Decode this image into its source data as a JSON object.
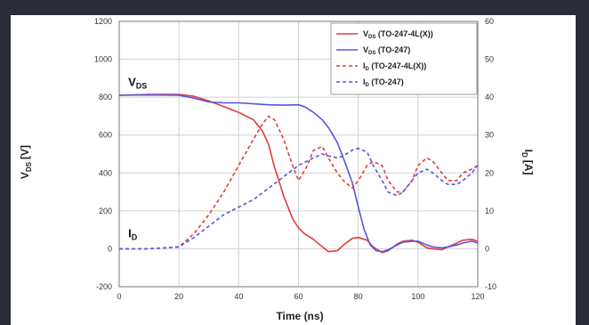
{
  "colors": {
    "background": "#2a2d35",
    "panel": "#ffffff",
    "red": "#e23b3b",
    "blue": "#5656e0",
    "grid": "#d0d0d0"
  },
  "chart_data": {
    "type": "line",
    "title": "",
    "xlabel": "Time (ns)",
    "ylabel": "V_DS [V]",
    "ylabel_main": "V",
    "ylabel_sub": "DS",
    "ylabel_unit": "[V]",
    "y2label": "I_D [A]",
    "y2label_main": "I",
    "y2label_sub": "D",
    "y2label_unit": "[A]",
    "xlim": [
      0,
      120
    ],
    "ylim": [
      -200,
      1200
    ],
    "y2lim": [
      -10,
      60
    ],
    "xticks": [
      "0",
      "20",
      "40",
      "60",
      "80",
      "100",
      "120"
    ],
    "yticks": [
      "-200",
      "0",
      "200",
      "400",
      "600",
      "800",
      "1000",
      "1200"
    ],
    "y2ticks": [
      "-10",
      "0",
      "10",
      "20",
      "30",
      "40",
      "50",
      "60"
    ],
    "grid": true,
    "legend_position": "top-right",
    "annotations": [
      {
        "main": "V",
        "sub": "DS",
        "x": 3,
        "y": 860
      },
      {
        "main": "I",
        "sub": "D",
        "x": 3,
        "y": 60
      }
    ],
    "series": [
      {
        "name": "V_DS (TO-247-4L(X))",
        "name_main": "V",
        "name_sub": "DS",
        "name_rest": " (TO-247-4L(X))",
        "axis": "left",
        "color": "#e23b3b",
        "dash": false,
        "x": [
          0,
          10,
          20,
          25,
          30,
          35,
          40,
          45,
          48,
          50,
          52,
          55,
          58,
          60,
          62,
          65,
          68,
          70,
          73,
          75,
          78,
          80,
          83,
          85,
          88,
          90,
          93,
          95,
          98,
          100,
          103,
          105,
          108,
          110,
          113,
          115,
          118,
          120
        ],
        "y": [
          810,
          815,
          815,
          805,
          780,
          750,
          720,
          680,
          620,
          550,
          430,
          280,
          160,
          110,
          80,
          50,
          10,
          -15,
          -10,
          20,
          55,
          60,
          45,
          10,
          -20,
          -10,
          25,
          40,
          45,
          35,
          5,
          0,
          -5,
          10,
          30,
          45,
          50,
          40
        ]
      },
      {
        "name": "V_DS (TO-247)",
        "name_main": "V",
        "name_sub": "DS",
        "name_rest": " (TO-247)",
        "axis": "left",
        "color": "#5656e0",
        "dash": false,
        "x": [
          0,
          10,
          20,
          25,
          30,
          35,
          40,
          45,
          50,
          55,
          60,
          62,
          65,
          68,
          70,
          73,
          75,
          78,
          80,
          82,
          84,
          86,
          88,
          90,
          93,
          95,
          98,
          100,
          103,
          105,
          108,
          110,
          113,
          115,
          118,
          120
        ],
        "y": [
          810,
          812,
          810,
          795,
          775,
          770,
          770,
          765,
          760,
          758,
          760,
          750,
          720,
          680,
          640,
          560,
          480,
          350,
          220,
          100,
          20,
          -10,
          -15,
          -5,
          20,
          35,
          40,
          40,
          20,
          10,
          5,
          10,
          20,
          30,
          40,
          30
        ]
      },
      {
        "name": "I_D (TO-247-4L(X))",
        "name_main": "I",
        "name_sub": "D",
        "name_rest": " (TO-247-4L(X))",
        "axis": "right",
        "color": "#e23b3b",
        "dash": true,
        "x": [
          0,
          10,
          20,
          25,
          30,
          35,
          40,
          45,
          48,
          50,
          52,
          55,
          58,
          60,
          63,
          65,
          68,
          70,
          73,
          75,
          78,
          80,
          83,
          85,
          88,
          90,
          93,
          95,
          98,
          100,
          103,
          105,
          108,
          110,
          113,
          115,
          118,
          120
        ],
        "y": [
          0,
          0,
          0.5,
          4,
          9,
          15,
          22,
          29,
          33,
          35,
          34,
          29,
          22,
          18,
          22,
          26,
          27,
          24,
          20,
          18,
          16,
          18,
          22,
          23,
          22,
          18,
          15,
          15,
          18,
          22,
          24,
          23,
          20,
          18,
          18,
          20,
          21,
          22
        ]
      },
      {
        "name": "I_D (TO-247)",
        "name_main": "I",
        "name_sub": "D",
        "name_rest": " (TO-247)",
        "axis": "right",
        "color": "#5656e0",
        "dash": true,
        "x": [
          0,
          10,
          20,
          25,
          30,
          35,
          40,
          45,
          50,
          55,
          60,
          65,
          68,
          70,
          73,
          75,
          78,
          80,
          83,
          85,
          88,
          90,
          93,
          95,
          98,
          100,
          103,
          105,
          108,
          110,
          113,
          115,
          118,
          120
        ],
        "y": [
          0,
          0,
          0.5,
          3,
          6,
          9,
          11,
          13,
          16,
          19,
          22,
          24,
          25,
          24.5,
          24,
          24.5,
          26,
          26.5,
          25.5,
          22,
          18,
          15,
          14,
          15,
          18,
          20,
          21,
          20,
          18,
          17,
          17,
          18,
          20,
          22
        ]
      }
    ]
  }
}
